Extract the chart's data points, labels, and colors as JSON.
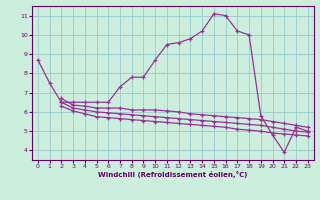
{
  "xlabel": "Windchill (Refroidissement éolien,°C)",
  "background_color": "#cceedd",
  "grid_color": "#99cccc",
  "line_color": "#993399",
  "xlim": [
    -0.5,
    23.5
  ],
  "ylim": [
    3.5,
    11.5
  ],
  "xticks": [
    0,
    1,
    2,
    3,
    4,
    5,
    6,
    7,
    8,
    9,
    10,
    11,
    12,
    13,
    14,
    15,
    16,
    17,
    18,
    19,
    20,
    21,
    22,
    23
  ],
  "yticks": [
    4,
    5,
    6,
    7,
    8,
    9,
    10,
    11
  ],
  "series": [
    [
      8.7,
      7.5,
      6.5,
      6.5,
      6.5,
      6.5,
      6.5,
      7.3,
      7.8,
      7.8,
      8.7,
      9.5,
      9.6,
      9.8,
      10.2,
      11.1,
      11.0,
      10.2,
      10.0,
      5.8,
      4.8,
      3.9,
      5.2,
      5.0
    ],
    [
      null,
      null,
      6.7,
      6.35,
      6.3,
      6.2,
      6.2,
      6.2,
      6.1,
      6.1,
      6.1,
      6.05,
      6.0,
      5.9,
      5.85,
      5.8,
      5.75,
      5.7,
      5.65,
      5.6,
      5.5,
      5.4,
      5.3,
      5.2
    ],
    [
      null,
      null,
      6.5,
      6.2,
      6.1,
      6.0,
      5.95,
      5.9,
      5.85,
      5.8,
      5.75,
      5.7,
      5.65,
      5.6,
      5.55,
      5.5,
      5.45,
      5.4,
      5.35,
      5.3,
      5.2,
      5.1,
      5.0,
      4.95
    ],
    [
      null,
      null,
      6.3,
      6.05,
      5.9,
      5.75,
      5.7,
      5.65,
      5.6,
      5.55,
      5.5,
      5.45,
      5.4,
      5.35,
      5.3,
      5.25,
      5.2,
      5.1,
      5.05,
      5.0,
      4.9,
      4.85,
      4.8,
      4.75
    ]
  ]
}
